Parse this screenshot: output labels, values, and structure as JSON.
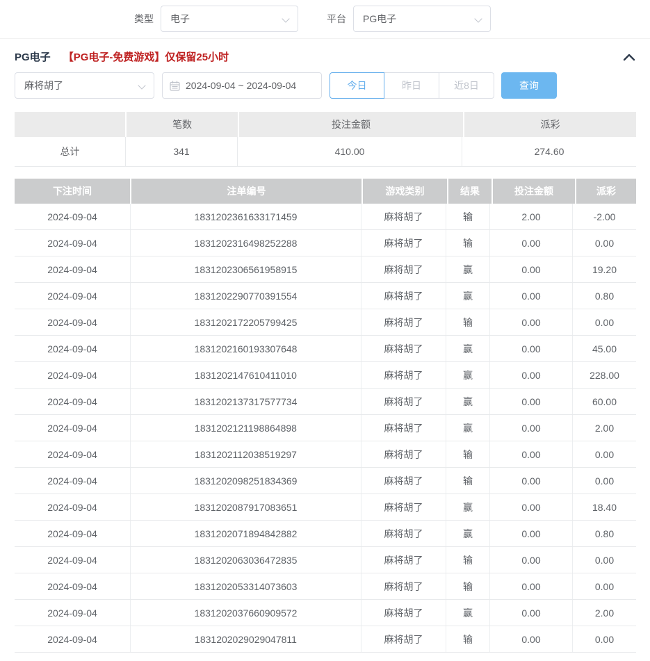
{
  "colors": {
    "accent_blue": "#64aeec",
    "query_button_bg": "#6cb7f0",
    "notice_red": "#bf2222",
    "negative_red": "#f56c6c",
    "table_header_bg": "#cbcccd",
    "summary_header_bg": "#ebebeb"
  },
  "top_filters": {
    "type_label": "类型",
    "type_value": "电子",
    "platform_label": "平台",
    "platform_value": "PG电子"
  },
  "section": {
    "title": "PG电子",
    "notice": "【PG电子-免费游戏】仅保留25小时",
    "collapse_icon": "chevron-up"
  },
  "filters": {
    "game_select_value": "麻将胡了",
    "date_range": "2024-09-04 ~ 2024-09-04",
    "quick_buttons": [
      "今日",
      "昨日",
      "近8日"
    ],
    "active_quick_button": "今日",
    "query_label": "查询"
  },
  "summary": {
    "headers": [
      "",
      "笔数",
      "投注金额",
      "派彩"
    ],
    "total_label": "总计",
    "count": "341",
    "bet_amount": "410.00",
    "payout": "274.60"
  },
  "table": {
    "headers": [
      "下注时间",
      "注单编号",
      "游戏类别",
      "结果",
      "投注金额",
      "派彩"
    ],
    "rows": [
      {
        "date": "2024-09-04",
        "order_no": "1831202361633171459",
        "game": "麻将胡了",
        "result": "输",
        "bet": "2.00",
        "payout": "-2.00"
      },
      {
        "date": "2024-09-04",
        "order_no": "1831202316498252288",
        "game": "麻将胡了",
        "result": "输",
        "bet": "0.00",
        "payout": "0.00"
      },
      {
        "date": "2024-09-04",
        "order_no": "1831202306561958915",
        "game": "麻将胡了",
        "result": "赢",
        "bet": "0.00",
        "payout": "19.20"
      },
      {
        "date": "2024-09-04",
        "order_no": "1831202290770391554",
        "game": "麻将胡了",
        "result": "赢",
        "bet": "0.00",
        "payout": "0.80"
      },
      {
        "date": "2024-09-04",
        "order_no": "1831202172205799425",
        "game": "麻将胡了",
        "result": "输",
        "bet": "0.00",
        "payout": "0.00"
      },
      {
        "date": "2024-09-04",
        "order_no": "1831202160193307648",
        "game": "麻将胡了",
        "result": "赢",
        "bet": "0.00",
        "payout": "45.00"
      },
      {
        "date": "2024-09-04",
        "order_no": "1831202147610411010",
        "game": "麻将胡了",
        "result": "赢",
        "bet": "0.00",
        "payout": "228.00"
      },
      {
        "date": "2024-09-04",
        "order_no": "1831202137317577734",
        "game": "麻将胡了",
        "result": "赢",
        "bet": "0.00",
        "payout": "60.00"
      },
      {
        "date": "2024-09-04",
        "order_no": "1831202121198864898",
        "game": "麻将胡了",
        "result": "赢",
        "bet": "0.00",
        "payout": "2.00"
      },
      {
        "date": "2024-09-04",
        "order_no": "1831202112038519297",
        "game": "麻将胡了",
        "result": "输",
        "bet": "0.00",
        "payout": "0.00"
      },
      {
        "date": "2024-09-04",
        "order_no": "1831202098251834369",
        "game": "麻将胡了",
        "result": "输",
        "bet": "0.00",
        "payout": "0.00"
      },
      {
        "date": "2024-09-04",
        "order_no": "1831202087917083651",
        "game": "麻将胡了",
        "result": "赢",
        "bet": "0.00",
        "payout": "18.40"
      },
      {
        "date": "2024-09-04",
        "order_no": "1831202071894842882",
        "game": "麻将胡了",
        "result": "赢",
        "bet": "0.00",
        "payout": "0.80"
      },
      {
        "date": "2024-09-04",
        "order_no": "1831202063036472835",
        "game": "麻将胡了",
        "result": "输",
        "bet": "0.00",
        "payout": "0.00"
      },
      {
        "date": "2024-09-04",
        "order_no": "1831202053314073603",
        "game": "麻将胡了",
        "result": "输",
        "bet": "0.00",
        "payout": "0.00"
      },
      {
        "date": "2024-09-04",
        "order_no": "1831202037660909572",
        "game": "麻将胡了",
        "result": "赢",
        "bet": "0.00",
        "payout": "2.00"
      },
      {
        "date": "2024-09-04",
        "order_no": "1831202029029047811",
        "game": "麻将胡了",
        "result": "输",
        "bet": "0.00",
        "payout": "0.00"
      }
    ]
  }
}
